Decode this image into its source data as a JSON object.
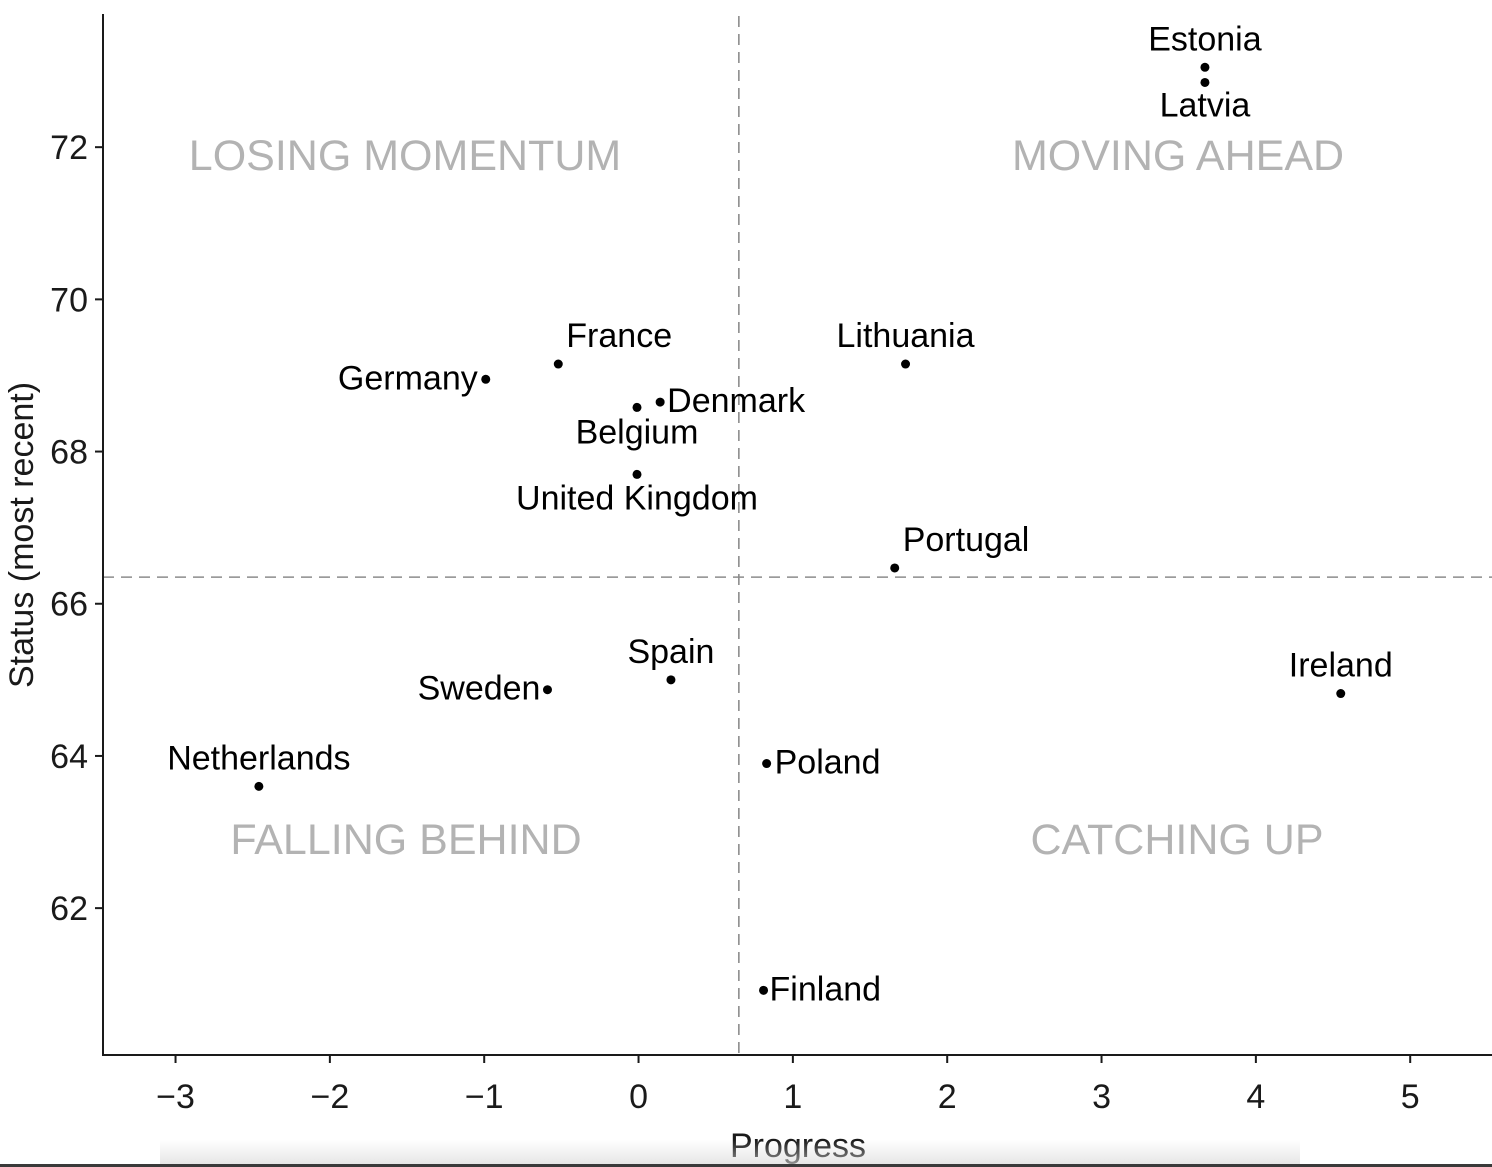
{
  "chart_data": {
    "type": "scatter",
    "title": "",
    "xlabel": "Progress",
    "ylabel": "Status (most recent)",
    "xlim": [
      -3.47,
      5.53
    ],
    "ylim": [
      60.07,
      73.75
    ],
    "x_ticks": [
      -3,
      -2,
      -1,
      0,
      1,
      2,
      3,
      4,
      5
    ],
    "x_tick_labels": [
      "−3",
      "−2",
      "−1",
      "0",
      "1",
      "2",
      "3",
      "4",
      "5"
    ],
    "y_ticks": [
      62,
      64,
      66,
      68,
      70,
      72
    ],
    "y_tick_labels": [
      "62",
      "64",
      "66",
      "68",
      "70",
      "72"
    ],
    "grid": false,
    "reference_lines": {
      "x": 0.65,
      "y": 66.35
    },
    "quadrant_labels": {
      "top_left": "LOSING MOMENTUM",
      "top_right": "MOVING AHEAD",
      "bottom_left": "FALLING BEHIND",
      "bottom_right": "CATCHING UP"
    },
    "points": [
      {
        "name": "Estonia",
        "x": 3.67,
        "y": 73.05
      },
      {
        "name": "Latvia",
        "x": 3.67,
        "y": 72.85
      },
      {
        "name": "France",
        "x": -0.52,
        "y": 69.15
      },
      {
        "name": "Lithuania",
        "x": 1.73,
        "y": 69.15
      },
      {
        "name": "Germany",
        "x": -0.99,
        "y": 68.95
      },
      {
        "name": "Denmark",
        "x": 0.14,
        "y": 68.65
      },
      {
        "name": "Belgium",
        "x": -0.01,
        "y": 68.58
      },
      {
        "name": "United Kingdom",
        "x": -0.01,
        "y": 67.7
      },
      {
        "name": "Portugal",
        "x": 1.66,
        "y": 66.47
      },
      {
        "name": "Spain",
        "x": 0.21,
        "y": 65.0
      },
      {
        "name": "Sweden",
        "x": -0.59,
        "y": 64.87
      },
      {
        "name": "Ireland",
        "x": 4.55,
        "y": 64.82
      },
      {
        "name": "Poland",
        "x": 0.83,
        "y": 63.9
      },
      {
        "name": "Netherlands",
        "x": -2.46,
        "y": 63.6
      },
      {
        "name": "Finland",
        "x": 0.81,
        "y": 60.92
      }
    ]
  }
}
